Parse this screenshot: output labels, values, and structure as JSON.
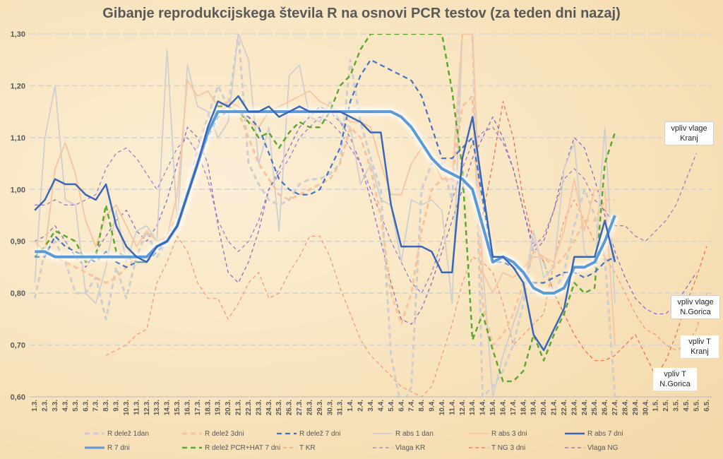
{
  "chart_data": {
    "type": "line",
    "title": "Gibanje reprodukcijskega števila R na osnovi PCR testov (za teden dni nazaj)",
    "xlabel": "",
    "ylabel": "",
    "ylim": [
      0.6,
      1.3
    ],
    "yticks": [
      "0,60",
      "0,70",
      "0,80",
      "0,90",
      "1,00",
      "1,10",
      "1,20",
      "1,30"
    ],
    "categories": [
      "1.3.",
      "2.3.",
      "3.3.",
      "4.3.",
      "5.3.",
      "6.3.",
      "7.3.",
      "8.3.",
      "9.3.",
      "10.3.",
      "11.3.",
      "12.3.",
      "13.3.",
      "14.3.",
      "15.3.",
      "16.3.",
      "17.3.",
      "18.3.",
      "19.3.",
      "20.3.",
      "21.3.",
      "22.3.",
      "23.3.",
      "24.3.",
      "25.3.",
      "26.3.",
      "27.3.",
      "28.3.",
      "29.3.",
      "30.3.",
      "31.3.",
      "1.4.",
      "2.4.",
      "3.4.",
      "4.4.",
      "5.4.",
      "6.4.",
      "7.4.",
      "8.4.",
      "9.4.",
      "10.4.",
      "11.4.",
      "12.4.",
      "13.4.",
      "14.4.",
      "15.4.",
      "16.4.",
      "17.4.",
      "18.4.",
      "19.4.",
      "20.4.",
      "21.4.",
      "22.4.",
      "23.4.",
      "24.4.",
      "25.4.",
      "26.4.",
      "27.4.",
      "28.4.",
      "29.4.",
      "30.4.",
      "1.5.",
      "2.5.",
      "3.5.",
      "4.5.",
      "5.5.",
      "6.5."
    ],
    "grid": true,
    "legend_position": "bottom",
    "series": [
      {
        "name": "R delež 1dan",
        "color": "#cdcdcd",
        "dash": "7,5",
        "width": 3,
        "values": [
          0.79,
          0.88,
          0.9,
          0.86,
          0.8,
          0.8,
          0.83,
          0.75,
          0.85,
          0.79,
          0.87,
          0.92,
          0.87,
          0.9,
          0.92,
          0.99,
          1.08,
          1.14,
          1.2,
          1.16,
          1.3,
          1.05,
          1.01,
          0.98,
          0.97,
          0.98,
          1.01,
          1.02,
          1.02,
          1.03,
          1.05,
          1.25,
          1.13,
          1.06,
          1.0,
          0.68,
          0.58,
          0.62,
          1.0,
          1.05,
          1.05,
          0.98,
          1.3,
          1.3,
          0.6,
          0.62,
          0.65,
          0.7,
          0.78,
          0.9,
          0.86,
          0.8,
          0.84,
          0.93,
          1.0,
          0.95,
          0.87,
          0.6,
          null,
          null,
          null,
          null,
          null,
          null,
          null,
          null,
          null
        ]
      },
      {
        "name": "R delež 3dni",
        "color": "#f6c39c",
        "dash": "7,5",
        "width": 3,
        "values": [
          0.88,
          0.88,
          0.87,
          0.86,
          0.85,
          0.84,
          0.83,
          0.82,
          0.83,
          0.85,
          0.87,
          0.87,
          0.89,
          0.91,
          0.95,
          1.0,
          1.06,
          1.11,
          1.15,
          1.16,
          1.15,
          1.1,
          1.05,
          1.02,
          0.99,
          0.98,
          0.99,
          1.0,
          1.01,
          1.02,
          1.05,
          1.12,
          1.1,
          1.04,
          0.95,
          0.8,
          0.74,
          0.8,
          0.92,
          1.0,
          1.02,
          1.02,
          1.16,
          1.18,
          0.78,
          0.7,
          0.72,
          0.76,
          0.82,
          0.88,
          0.87,
          0.85,
          0.87,
          0.9,
          0.94,
          0.94,
          0.98,
          0.98,
          null,
          null,
          null,
          null,
          null,
          null,
          null,
          null,
          null
        ]
      },
      {
        "name": "R delež 7 dni",
        "color": "#4472c4",
        "dash": "7,5",
        "width": 2.2,
        "values": [
          0.87,
          0.87,
          0.91,
          0.89,
          0.88,
          0.87,
          0.86,
          0.88,
          0.86,
          0.85,
          0.86,
          0.86,
          0.88,
          0.9,
          0.93,
          0.99,
          1.05,
          1.1,
          1.14,
          1.15,
          1.15,
          1.14,
          1.12,
          1.07,
          1.02,
          1.0,
          0.99,
          0.99,
          1.0,
          1.04,
          1.08,
          1.17,
          1.22,
          1.25,
          1.24,
          1.23,
          1.22,
          1.21,
          1.18,
          1.12,
          1.06,
          1.06,
          1.08,
          1.1,
          0.98,
          0.86,
          0.86,
          0.85,
          0.84,
          0.82,
          0.82,
          0.83,
          0.84,
          0.84,
          0.83,
          0.84,
          0.86,
          0.87,
          null,
          null,
          null,
          null,
          null,
          null,
          null,
          null,
          null
        ]
      },
      {
        "name": "R abs 1 dan",
        "color": "#cfcfcf",
        "dash": "",
        "width": 1.8,
        "values": [
          0.82,
          1.1,
          1.2,
          0.98,
          0.97,
          0.8,
          0.78,
          0.85,
          0.96,
          0.86,
          0.92,
          0.93,
          0.9,
          1.27,
          0.93,
          1.24,
          1.16,
          1.15,
          1.1,
          1.13,
          1.3,
          1.25,
          1.05,
          1.12,
          0.92,
          1.22,
          1.24,
          1.14,
          1.13,
          1.17,
          1.13,
          1.12,
          1.01,
          1.05,
          0.98,
          0.97,
          0.86,
          0.98,
          0.97,
          0.98,
          0.96,
          0.78,
          1.3,
          1.3,
          0.85,
          0.6,
          0.68,
          0.74,
          0.8,
          0.92,
          0.83,
          0.85,
          1.04,
          1.09,
          0.88,
          0.85,
          1.12,
          0.78,
          null,
          null,
          null,
          null,
          null,
          null,
          null,
          null,
          null
        ]
      },
      {
        "name": "R abs 3 dni",
        "color": "#f6c7a4",
        "dash": "",
        "width": 2,
        "values": [
          0.9,
          0.88,
          1.04,
          1.09,
          1.03,
          0.94,
          0.89,
          0.95,
          0.97,
          0.93,
          0.89,
          0.92,
          0.9,
          0.91,
          0.99,
          1.21,
          1.18,
          1.19,
          1.16,
          1.17,
          1.16,
          1.13,
          1.12,
          1.15,
          1.16,
          1.17,
          1.18,
          1.19,
          1.17,
          1.16,
          1.15,
          1.13,
          1.13,
          1.12,
          1.05,
          0.99,
          0.99,
          1.05,
          1.08,
          1.06,
          1.02,
          1.02,
          1.3,
          1.3,
          0.84,
          0.8,
          0.84,
          0.83,
          0.85,
          0.87,
          0.87,
          0.86,
          0.92,
          1.02,
          0.92,
          1.0,
          1.0,
          0.7,
          null,
          null,
          null,
          null,
          null,
          null,
          null,
          null,
          null
        ]
      },
      {
        "name": "R abs 7 dni",
        "color": "#3a66b8",
        "dash": "",
        "width": 2.5,
        "values": [
          0.96,
          0.98,
          1.02,
          1.01,
          1.01,
          0.99,
          0.98,
          1.01,
          0.93,
          0.89,
          0.87,
          0.86,
          0.89,
          0.9,
          0.93,
          0.99,
          1.05,
          1.12,
          1.17,
          1.16,
          1.18,
          1.15,
          1.15,
          1.16,
          1.14,
          1.15,
          1.16,
          1.15,
          1.15,
          1.15,
          1.15,
          1.14,
          1.13,
          1.11,
          1.11,
          0.97,
          0.89,
          0.89,
          0.89,
          0.88,
          0.84,
          0.84,
          1.06,
          1.14,
          1.0,
          0.87,
          0.87,
          0.85,
          0.82,
          0.72,
          0.69,
          0.73,
          0.77,
          0.87,
          0.87,
          0.87,
          0.94,
          0.86,
          null,
          null,
          null,
          null,
          null,
          null,
          null,
          null,
          null
        ]
      },
      {
        "name": "R 7 dni",
        "color": "#5b9bd5",
        "dash": "",
        "width": 4,
        "values": [
          0.88,
          0.88,
          0.87,
          0.87,
          0.87,
          0.87,
          0.87,
          0.87,
          0.87,
          0.87,
          0.87,
          0.87,
          0.89,
          0.9,
          0.93,
          0.99,
          1.05,
          1.11,
          1.15,
          1.15,
          1.15,
          1.15,
          1.15,
          1.15,
          1.15,
          1.15,
          1.15,
          1.15,
          1.15,
          1.15,
          1.15,
          1.15,
          1.15,
          1.15,
          1.15,
          1.15,
          1.14,
          1.12,
          1.09,
          1.06,
          1.04,
          1.03,
          1.02,
          1.0,
          0.93,
          0.86,
          0.87,
          0.86,
          0.84,
          0.81,
          0.8,
          0.8,
          0.81,
          0.85,
          0.85,
          0.86,
          0.9,
          0.95,
          null,
          null,
          null,
          null,
          null,
          null,
          null,
          null,
          null
        ]
      },
      {
        "name": "R delež PCR+HAT 7 dni",
        "color": "#5ea832",
        "dash": "7,5",
        "width": 2.5,
        "values": [
          0.87,
          0.89,
          0.92,
          0.91,
          0.9,
          0.86,
          0.87,
          0.97,
          0.88,
          0.87,
          0.86,
          0.86,
          0.89,
          0.9,
          0.93,
          0.99,
          1.05,
          1.11,
          1.16,
          1.16,
          1.15,
          1.13,
          1.1,
          1.11,
          1.08,
          1.11,
          1.13,
          1.12,
          1.12,
          1.15,
          1.2,
          1.22,
          1.27,
          1.3,
          1.3,
          1.3,
          1.3,
          1.3,
          1.3,
          1.3,
          1.3,
          1.19,
          1.04,
          0.71,
          0.76,
          0.69,
          0.63,
          0.63,
          0.65,
          0.72,
          0.67,
          0.72,
          0.76,
          0.82,
          0.8,
          0.81,
          1.05,
          1.11,
          null,
          null,
          null,
          null,
          null,
          null,
          null,
          null,
          null
        ]
      },
      {
        "name": "T KR",
        "color": "#ef9a7a",
        "dash": "5,4",
        "width": 1.3,
        "values": [
          null,
          null,
          null,
          null,
          null,
          null,
          null,
          0.68,
          0.69,
          0.7,
          0.72,
          0.73,
          0.82,
          0.86,
          0.91,
          0.88,
          0.82,
          0.79,
          0.79,
          0.75,
          0.78,
          0.82,
          0.84,
          0.79,
          0.8,
          0.84,
          0.87,
          0.91,
          0.91,
          0.87,
          0.81,
          0.76,
          0.71,
          0.68,
          0.66,
          0.64,
          0.62,
          0.61,
          0.6,
          0.62,
          0.68,
          0.74,
          0.82,
          0.87,
          0.86,
          0.84,
          0.78,
          0.7,
          0.72,
          0.74,
          0.76,
          0.86,
          0.94,
          0.98,
          0.94,
          0.9,
          0.87,
          0.84,
          0.8,
          0.76,
          0.73,
          0.72,
          0.7,
          0.69,
          0.7,
          0.73,
          0.8
        ]
      },
      {
        "name": "Vlaga KR",
        "color": "#9f7dc2",
        "dash": "5,4",
        "width": 1.3,
        "values": [
          0.97,
          0.97,
          0.98,
          0.97,
          0.97,
          0.98,
          0.99,
          1.04,
          1.07,
          1.08,
          1.06,
          1.03,
          1.0,
          1.04,
          1.08,
          1.1,
          1.07,
          1.02,
          0.94,
          0.9,
          0.88,
          0.9,
          0.94,
          1.0,
          1.03,
          1.06,
          1.1,
          1.12,
          1.14,
          1.13,
          1.11,
          1.08,
          1.05,
          1.0,
          0.95,
          0.9,
          0.86,
          0.82,
          0.8,
          0.84,
          0.9,
          0.98,
          1.04,
          1.09,
          1.11,
          1.12,
          1.09,
          1.04,
          0.96,
          0.89,
          0.91,
          0.96,
          1.02,
          1.04,
          1.02,
          0.98,
          0.96,
          0.93,
          0.93,
          0.91,
          0.9,
          0.92,
          0.94,
          0.97,
          1.02,
          1.07,
          null
        ]
      },
      {
        "name": "T NG 3 dni",
        "color": "#e8734f",
        "dash": "5,4",
        "width": 1.3,
        "values": [
          null,
          null,
          null,
          null,
          null,
          null,
          null,
          null,
          null,
          null,
          null,
          null,
          null,
          null,
          null,
          null,
          null,
          null,
          null,
          null,
          null,
          null,
          null,
          null,
          null,
          null,
          null,
          null,
          null,
          null,
          null,
          null,
          null,
          null,
          null,
          null,
          null,
          null,
          null,
          null,
          null,
          null,
          null,
          null,
          0.95,
          1.05,
          1.17,
          1.1,
          0.98,
          0.9,
          0.86,
          0.8,
          0.76,
          0.72,
          0.69,
          0.67,
          0.67,
          0.68,
          0.7,
          0.72,
          0.68,
          0.64,
          0.67,
          0.72,
          0.78,
          0.83,
          0.89
        ]
      },
      {
        "name": "Vlaga NG",
        "color": "#8e6bbb",
        "dash": "5,4",
        "width": 1.3,
        "values": [
          0.9,
          0.91,
          0.93,
          0.9,
          0.87,
          0.85,
          0.88,
          0.91,
          0.94,
          0.96,
          0.92,
          0.9,
          0.93,
          0.98,
          1.05,
          1.12,
          1.1,
          1.05,
          0.93,
          0.84,
          0.82,
          0.86,
          0.92,
          1.0,
          1.04,
          1.08,
          1.12,
          1.14,
          1.16,
          1.15,
          1.13,
          1.1,
          1.05,
          0.98,
          0.9,
          0.82,
          0.75,
          0.74,
          0.77,
          0.82,
          0.88,
          0.94,
          1.0,
          1.06,
          1.1,
          1.14,
          1.1,
          1.04,
          0.96,
          0.88,
          0.9,
          0.96,
          1.04,
          1.1,
          1.08,
          1.02,
          0.95,
          0.88,
          0.83,
          0.79,
          0.77,
          0.76,
          0.76,
          0.78,
          0.81,
          0.84,
          null
        ]
      }
    ]
  },
  "annotations": [
    {
      "text": "vpliv vlage\nKranj"
    },
    {
      "text": "vpliv vlage\nN.Gorica"
    },
    {
      "text": "vpliv T\nKranj"
    },
    {
      "text": "vpliv T\nN.Gorica"
    }
  ]
}
